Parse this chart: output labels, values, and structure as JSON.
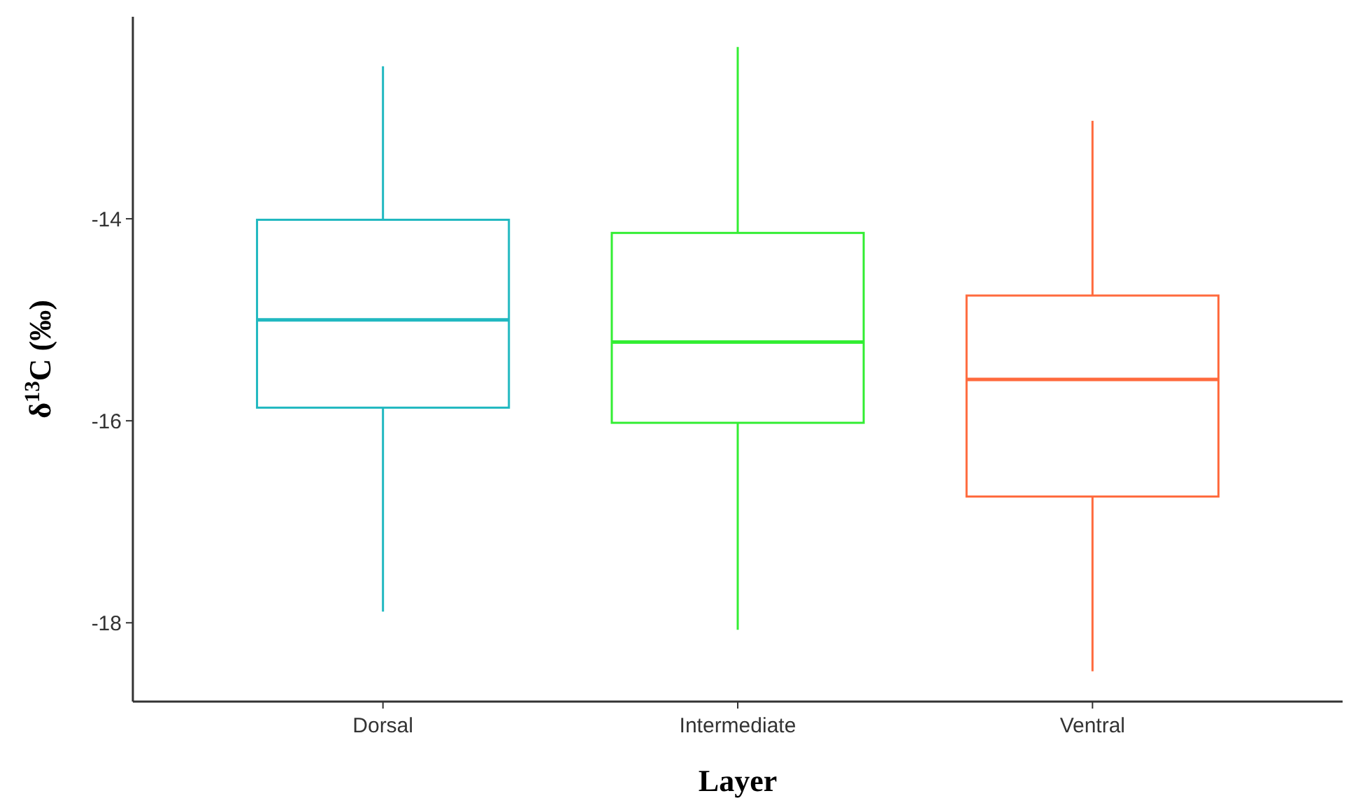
{
  "chart_data": {
    "type": "box",
    "xlabel": "Layer",
    "ylabel": "δ$^{13}$C (‰)",
    "categories": [
      "Dorsal",
      "Intermediate",
      "Ventral"
    ],
    "colors": [
      "#20b8c0",
      "#33ee33",
      "#ff6a3d"
    ],
    "boxes": [
      {
        "low": -17.89,
        "q1": -15.87,
        "median": -15.0,
        "q3": -14.01,
        "high": -12.49
      },
      {
        "low": -18.07,
        "q1": -16.02,
        "median": -15.22,
        "q3": -14.14,
        "high": -12.3
      },
      {
        "low": -18.48,
        "q1": -16.75,
        "median": -15.59,
        "q3": -14.76,
        "high": -13.03
      }
    ],
    "ylim": [
      -18.78,
      -12.0
    ],
    "yticks": [
      -18,
      -16,
      -14
    ],
    "grid": false
  }
}
